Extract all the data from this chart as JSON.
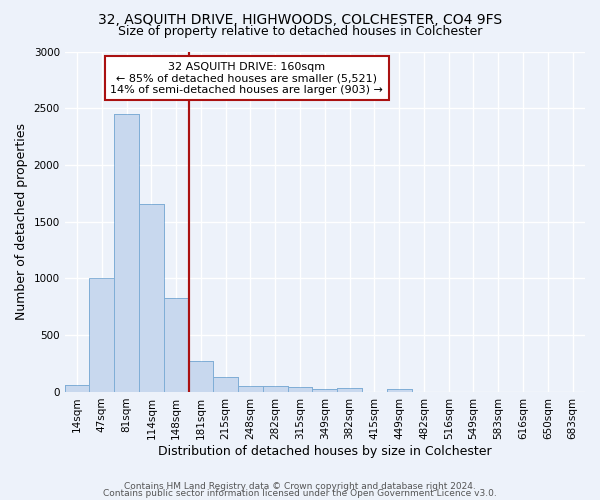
{
  "title1": "32, ASQUITH DRIVE, HIGHWOODS, COLCHESTER, CO4 9FS",
  "title2": "Size of property relative to detached houses in Colchester",
  "xlabel": "Distribution of detached houses by size in Colchester",
  "ylabel": "Number of detached properties",
  "bin_labels": [
    "14sqm",
    "47sqm",
    "81sqm",
    "114sqm",
    "148sqm",
    "181sqm",
    "215sqm",
    "248sqm",
    "282sqm",
    "315sqm",
    "349sqm",
    "382sqm",
    "415sqm",
    "449sqm",
    "482sqm",
    "516sqm",
    "549sqm",
    "583sqm",
    "616sqm",
    "650sqm",
    "683sqm"
  ],
  "bar_heights": [
    60,
    1000,
    2450,
    1660,
    830,
    275,
    130,
    55,
    55,
    40,
    25,
    35,
    0,
    25,
    0,
    0,
    0,
    0,
    0,
    0,
    0
  ],
  "bar_color": "#c8d8ee",
  "bar_edgecolor": "#7aaad4",
  "vline_color": "#aa1111",
  "annotation_text": "32 ASQUITH DRIVE: 160sqm\n← 85% of detached houses are smaller (5,521)\n14% of semi-detached houses are larger (903) →",
  "annotation_box_color": "#aa1111",
  "ylim": [
    0,
    3000
  ],
  "yticks": [
    0,
    500,
    1000,
    1500,
    2000,
    2500,
    3000
  ],
  "footer1": "Contains HM Land Registry data © Crown copyright and database right 2024.",
  "footer2": "Contains public sector information licensed under the Open Government Licence v3.0.",
  "background_color": "#edf2fa",
  "grid_color": "#ffffff",
  "title_fontsize": 10,
  "subtitle_fontsize": 9,
  "axis_label_fontsize": 9,
  "tick_fontsize": 7.5,
  "annotation_fontsize": 8,
  "footer_fontsize": 6.5
}
